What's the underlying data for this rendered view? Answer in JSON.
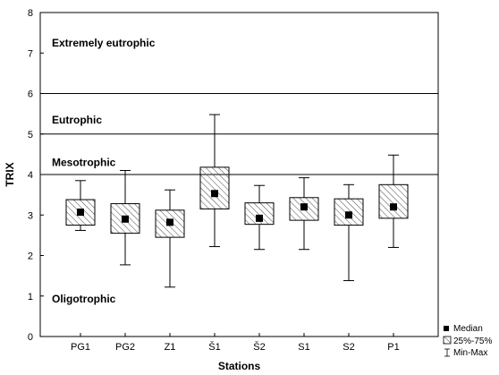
{
  "chart_data": {
    "type": "box",
    "xlabel": "Stations",
    "ylabel": "TRIX",
    "ylim": [
      0,
      8
    ],
    "yticks": [
      0,
      1,
      2,
      3,
      4,
      5,
      6,
      7,
      8
    ],
    "categories": [
      "PG1",
      "PG2",
      "Z1",
      "Š1",
      "Š2",
      "S1",
      "S2",
      "P1"
    ],
    "boxes": [
      {
        "station": "PG1",
        "min": 2.62,
        "q1": 2.75,
        "median": 3.07,
        "q3": 3.38,
        "max": 3.85
      },
      {
        "station": "PG2",
        "min": 1.77,
        "q1": 2.55,
        "median": 2.9,
        "q3": 3.28,
        "max": 4.1
      },
      {
        "station": "Z1",
        "min": 1.22,
        "q1": 2.45,
        "median": 2.82,
        "q3": 3.12,
        "max": 3.62
      },
      {
        "station": "Š1",
        "min": 2.22,
        "q1": 3.15,
        "median": 3.53,
        "q3": 4.18,
        "max": 5.48
      },
      {
        "station": "Š2",
        "min": 2.15,
        "q1": 2.77,
        "median": 2.92,
        "q3": 3.3,
        "max": 3.73
      },
      {
        "station": "S1",
        "min": 2.15,
        "q1": 2.87,
        "median": 3.2,
        "q3": 3.43,
        "max": 3.92
      },
      {
        "station": "S2",
        "min": 1.38,
        "q1": 2.75,
        "median": 3.0,
        "q3": 3.4,
        "max": 3.75
      },
      {
        "station": "P1",
        "min": 2.2,
        "q1": 2.92,
        "median": 3.2,
        "q3": 3.75,
        "max": 4.48
      }
    ],
    "thresholds": [
      4,
      5,
      6
    ],
    "zones": [
      {
        "label": "Extremely eutrophic",
        "y": 7.25
      },
      {
        "label": "Eutrophic",
        "y": 5.35
      },
      {
        "label": "Mesotrophic",
        "y": 4.3
      },
      {
        "label": "Oligotrophic",
        "y": 0.93
      }
    ],
    "legend": {
      "placement": "bottom-right",
      "entries": [
        "Median",
        "25%-75%",
        "Min-Max"
      ]
    },
    "grid": false
  }
}
